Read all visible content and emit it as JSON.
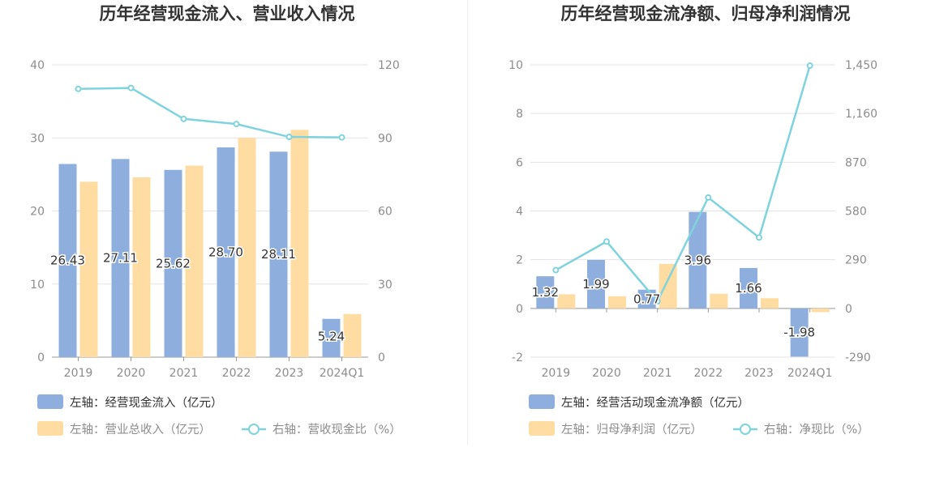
{
  "colors": {
    "bar_primary": "#8eaedd",
    "bar_secondary": "#ffdca1",
    "line": "#7fd3dc",
    "grid": "#e3e3e3",
    "axis_text": "#8c8c8c",
    "title_text": "#333333",
    "label_text": "#333333"
  },
  "chart_data": [
    {
      "type": "bar",
      "title": "历年经营现金流入、营业收入情况",
      "categories": [
        "2019",
        "2020",
        "2021",
        "2022",
        "2023",
        "2024Q1"
      ],
      "y_left": {
        "ticks": [
          "0",
          "10",
          "20",
          "30",
          "40"
        ],
        "min": 0,
        "max": 40
      },
      "y_right": {
        "ticks": [
          "0",
          "30",
          "60",
          "90",
          "120"
        ],
        "min": 0,
        "max": 120
      },
      "series": [
        {
          "name": "左轴：经营现金流入（亿元）",
          "axis": "left",
          "type": "bar",
          "values": [
            26.43,
            27.11,
            25.62,
            28.7,
            28.11,
            5.24
          ],
          "labels": [
            "26.43",
            "27.11",
            "25.62",
            "28.70",
            "28.11",
            "5.24"
          ]
        },
        {
          "name": "左轴：营业总收入（亿元）",
          "axis": "left",
          "type": "bar",
          "values": [
            24.0,
            24.6,
            26.2,
            30.0,
            31.1,
            5.9
          ]
        },
        {
          "name": "右轴：营收现金比（%）",
          "axis": "right",
          "type": "line",
          "values": [
            110.1,
            110.5,
            97.8,
            95.7,
            90.4,
            90.2
          ]
        }
      ]
    },
    {
      "type": "bar",
      "title": "历年经营现金流净额、归母净利润情况",
      "categories": [
        "2019",
        "2020",
        "2021",
        "2022",
        "2023",
        "2024Q1"
      ],
      "y_left": {
        "ticks": [
          "-2",
          "0",
          "2",
          "4",
          "6",
          "8",
          "10"
        ],
        "min": -2,
        "max": 10
      },
      "y_right": {
        "ticks": [
          "-290",
          "0",
          "290",
          "580",
          "870",
          "1,160",
          "1,450"
        ],
        "min": -290,
        "max": 1450
      },
      "series": [
        {
          "name": "左轴：经营活动现金流净额（亿元）",
          "axis": "left",
          "type": "bar",
          "values": [
            1.32,
            1.99,
            0.77,
            3.96,
            1.66,
            -1.98
          ],
          "labels": [
            "1.32",
            "1.99",
            "0.77",
            "3.96",
            "1.66",
            "-1.98"
          ]
        },
        {
          "name": "左轴：归母净利润（亿元）",
          "axis": "left",
          "type": "bar",
          "values": [
            0.58,
            0.5,
            1.83,
            0.6,
            0.42,
            -0.15
          ]
        },
        {
          "name": "右轴：净现比（%）",
          "axis": "right",
          "type": "line",
          "values": [
            228,
            398,
            42,
            660,
            422,
            1445
          ]
        }
      ]
    }
  ]
}
